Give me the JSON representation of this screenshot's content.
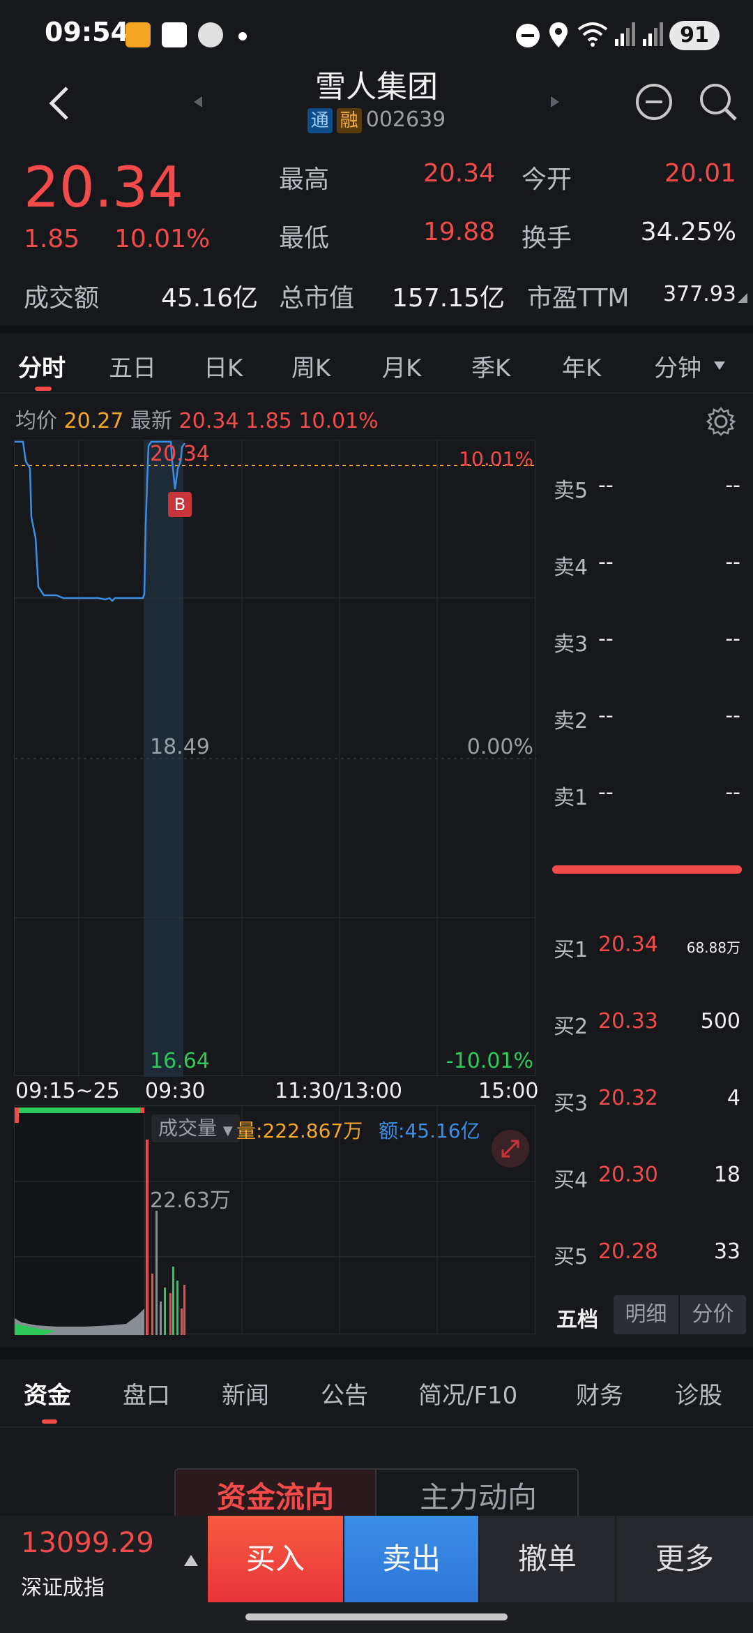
{
  "status_bar": {
    "time": "09:54",
    "battery": "91"
  },
  "header": {
    "title": "雪人集团",
    "tag_tong": "通",
    "tag_rong": "融",
    "code": "002639"
  },
  "quote": {
    "price": "20.34",
    "change": "1.85",
    "change_pct": "10.01%",
    "high_label": "最高",
    "high": "20.34",
    "open_label": "今开",
    "open": "20.01",
    "low_label": "最低",
    "low": "19.88",
    "turnover_label": "换手",
    "turnover": "34.25%",
    "amount_label": "成交额",
    "amount": "45.16亿",
    "mktcap_label": "总市值",
    "mktcap": "157.15亿",
    "pe_label": "市盈TTM",
    "pe": "377.93"
  },
  "chart_tabs": [
    "分时",
    "五日",
    "日K",
    "周K",
    "月K",
    "季K",
    "年K",
    "分钟"
  ],
  "chart_info": {
    "avg_label": "均价",
    "avg": "20.27",
    "latest_label": "最新",
    "latest": "20.34 1.85 10.01%"
  },
  "chart_data": {
    "type": "line",
    "y_labels": {
      "top_price": "20.34",
      "top_pct": "10.01%",
      "mid_price": "18.49",
      "mid_pct": "0.00%",
      "bottom_price": "16.64",
      "bottom_pct": "-10.01%"
    },
    "ylim": [
      16.64,
      20.34
    ],
    "x_labels": [
      "09:15~25",
      "09:30",
      "11:30/13:00",
      "15:00"
    ],
    "marker": "B"
  },
  "volume": {
    "indicator": "成交量",
    "vol_label": "量:",
    "vol": "222.867万",
    "amt_label": "额:",
    "amt": "45.16亿",
    "peak": "22.63万"
  },
  "order_book": {
    "asks": [
      {
        "label": "卖5",
        "price": "--",
        "vol": "--"
      },
      {
        "label": "卖4",
        "price": "--",
        "vol": "--"
      },
      {
        "label": "卖3",
        "price": "--",
        "vol": "--"
      },
      {
        "label": "卖2",
        "price": "--",
        "vol": "--"
      },
      {
        "label": "卖1",
        "price": "--",
        "vol": "--"
      }
    ],
    "bids": [
      {
        "label": "买1",
        "price": "20.34",
        "vol": "68.88万"
      },
      {
        "label": "买2",
        "price": "20.33",
        "vol": "500"
      },
      {
        "label": "买3",
        "price": "20.32",
        "vol": "4"
      },
      {
        "label": "买4",
        "price": "20.30",
        "vol": "18"
      },
      {
        "label": "买5",
        "price": "20.28",
        "vol": "33"
      }
    ],
    "tabs": [
      "五档",
      "明细",
      "分价"
    ]
  },
  "bottom_tabs": [
    "资金",
    "盘口",
    "新闻",
    "公告",
    "简况/F10",
    "财务",
    "诊股"
  ],
  "fund_tabs": [
    "资金流向",
    "主力动向"
  ],
  "index": {
    "value": "13099.29",
    "name": "深证成指"
  },
  "actions": {
    "buy": "买入",
    "sell": "卖出",
    "cancel": "撤单",
    "more": "更多"
  },
  "colors": {
    "up": "#f34a4a",
    "down": "#2ec95a",
    "line": "#3a8ee6",
    "avg": "#f5a524"
  }
}
